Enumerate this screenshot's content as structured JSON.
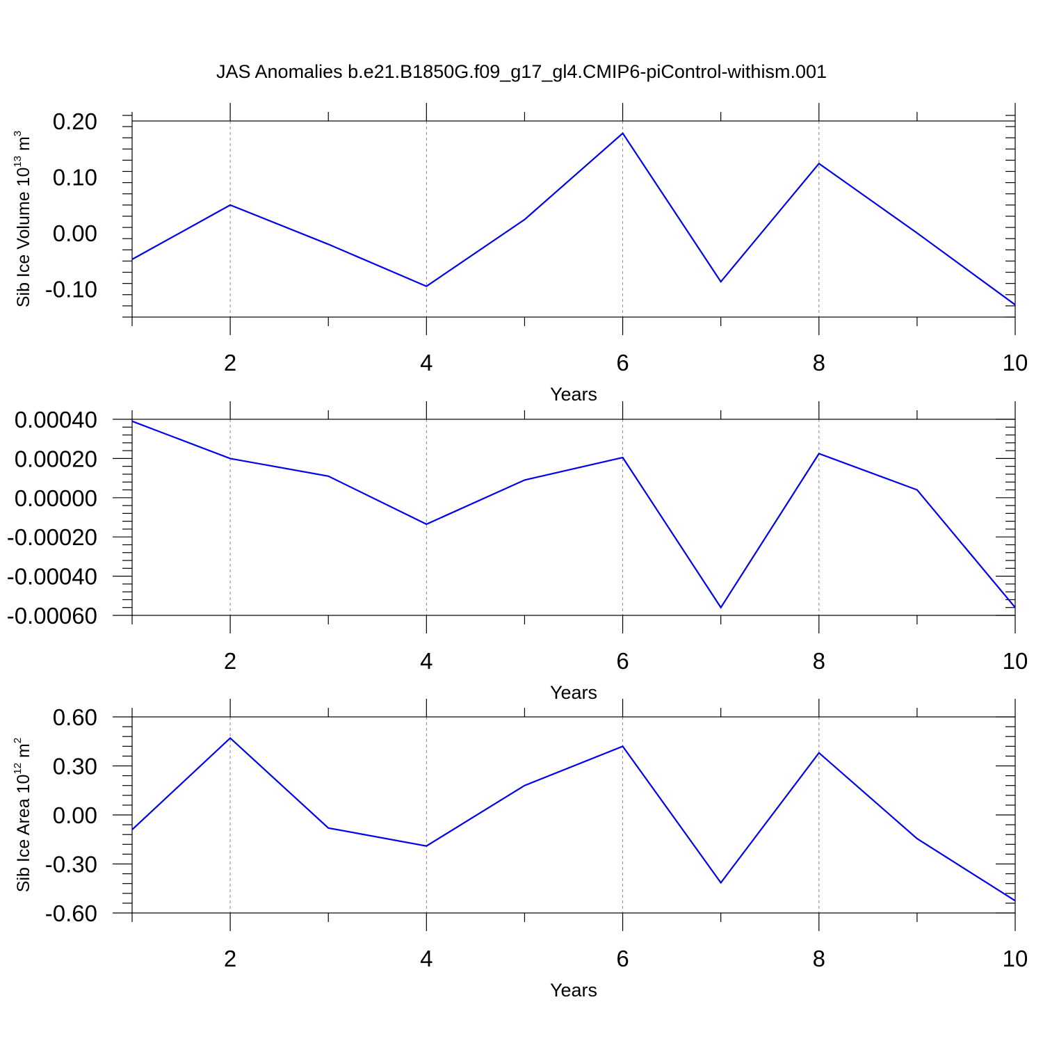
{
  "title": "JAS Anomalies b.e21.B1850G.f09_g17_gl4.CMIP6-piControl-withism.001",
  "colors": {
    "line": "#0000ee",
    "axis": "#000000",
    "grid": "#888888"
  },
  "chart_data": [
    {
      "type": "line",
      "xlabel": "Years",
      "ylabel": {
        "text": "Sib Ice Volume 10",
        "exp": "13",
        "unit": "m",
        "unit_exp": "3"
      },
      "xlim": [
        1,
        10
      ],
      "ylim": [
        -0.15,
        0.2
      ],
      "xticks": [
        2,
        4,
        6,
        8,
        10
      ],
      "yticks": [
        0.2,
        0.1,
        0.0,
        -0.1
      ],
      "ytick_labels": [
        "0.20",
        "0.10",
        "0.00",
        "-0.10"
      ],
      "vgrid": [
        2,
        4,
        6,
        8
      ],
      "x": [
        1,
        2,
        3,
        4,
        5,
        6,
        7,
        8,
        9,
        10
      ],
      "y": [
        -0.047,
        0.05,
        -0.02,
        -0.095,
        0.024,
        0.178,
        -0.087,
        0.124,
        0.0,
        -0.128
      ]
    },
    {
      "type": "line",
      "xlabel": "Years",
      "xlim": [
        1,
        10
      ],
      "ylim": [
        -0.0006,
        0.0004
      ],
      "xticks": [
        2,
        4,
        6,
        8,
        10
      ],
      "yticks": [
        0.0004,
        0.0002,
        0.0,
        -0.0002,
        -0.0004,
        -0.0006
      ],
      "ytick_labels": [
        "0.00040",
        "0.00020",
        "0.00000",
        "-0.00020",
        "-0.00040",
        "-0.00060"
      ],
      "vgrid": [
        2,
        4,
        6,
        8
      ],
      "x": [
        1,
        2,
        3,
        4,
        5,
        6,
        7,
        8,
        9,
        10
      ],
      "y": [
        0.00039,
        0.0002,
        0.00011,
        -0.000135,
        9e-05,
        0.000205,
        -0.00056,
        0.000225,
        4e-05,
        -0.00056
      ]
    },
    {
      "type": "line",
      "xlabel": "Years",
      "ylabel": {
        "text": "Sib Ice Area 10",
        "exp": "12",
        "unit": "m",
        "unit_exp": "2"
      },
      "xlim": [
        1,
        10
      ],
      "ylim": [
        -0.6,
        0.6
      ],
      "xticks": [
        2,
        4,
        6,
        8,
        10
      ],
      "yticks": [
        0.6,
        0.3,
        0.0,
        -0.3,
        -0.6
      ],
      "ytick_labels": [
        "0.60",
        "0.30",
        "0.00",
        "-0.30",
        "-0.60"
      ],
      "vgrid": [
        2,
        4,
        6,
        8
      ],
      "x": [
        1,
        2,
        3,
        4,
        5,
        6,
        7,
        8,
        9,
        10
      ],
      "y": [
        -0.09,
        0.47,
        -0.08,
        -0.19,
        0.18,
        0.42,
        -0.415,
        0.38,
        -0.145,
        -0.525
      ]
    }
  ]
}
